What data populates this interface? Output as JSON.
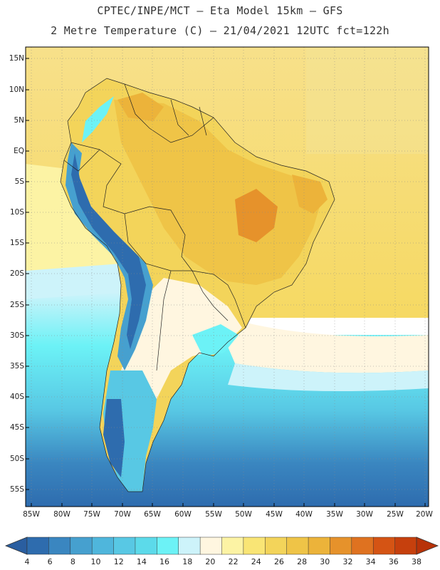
{
  "header": {
    "line1": "CPTEC/INPE/MCT –  Eta Model 15km – GFS",
    "line2": "2 Metre Temperature (C) – 21/04/2021 12UTC fct=122h"
  },
  "axes": {
    "lat_labels": [
      "15N",
      "10N",
      "5N",
      "EQ",
      "5S",
      "10S",
      "15S",
      "20S",
      "25S",
      "30S",
      "35S",
      "40S",
      "45S",
      "50S",
      "55S"
    ],
    "lon_labels": [
      "85W",
      "80W",
      "75W",
      "70W",
      "65W",
      "60W",
      "55W",
      "50W",
      "45W",
      "40W",
      "35W",
      "30W",
      "25W",
      "20W"
    ]
  },
  "colorbar": {
    "unit": "C",
    "labels": [
      "4",
      "6",
      "8",
      "10",
      "12",
      "14",
      "16",
      "18",
      "20",
      "22",
      "24",
      "26",
      "28",
      "30",
      "32",
      "34",
      "36",
      "38"
    ],
    "colors": [
      "#2e6cae",
      "#3a86c0",
      "#46a0cf",
      "#4fb6dc",
      "#58c8e4",
      "#5cdaea",
      "#6cf2f6",
      "#cdf3fa",
      "#fff6e0",
      "#fcf3a4",
      "#f9e575",
      "#f3d45a",
      "#efc447",
      "#ecb33a",
      "#e6922b",
      "#df7220",
      "#d55414",
      "#c6400d"
    ],
    "under_color": "#2a5ea0",
    "over_color": "#b83208"
  }
}
